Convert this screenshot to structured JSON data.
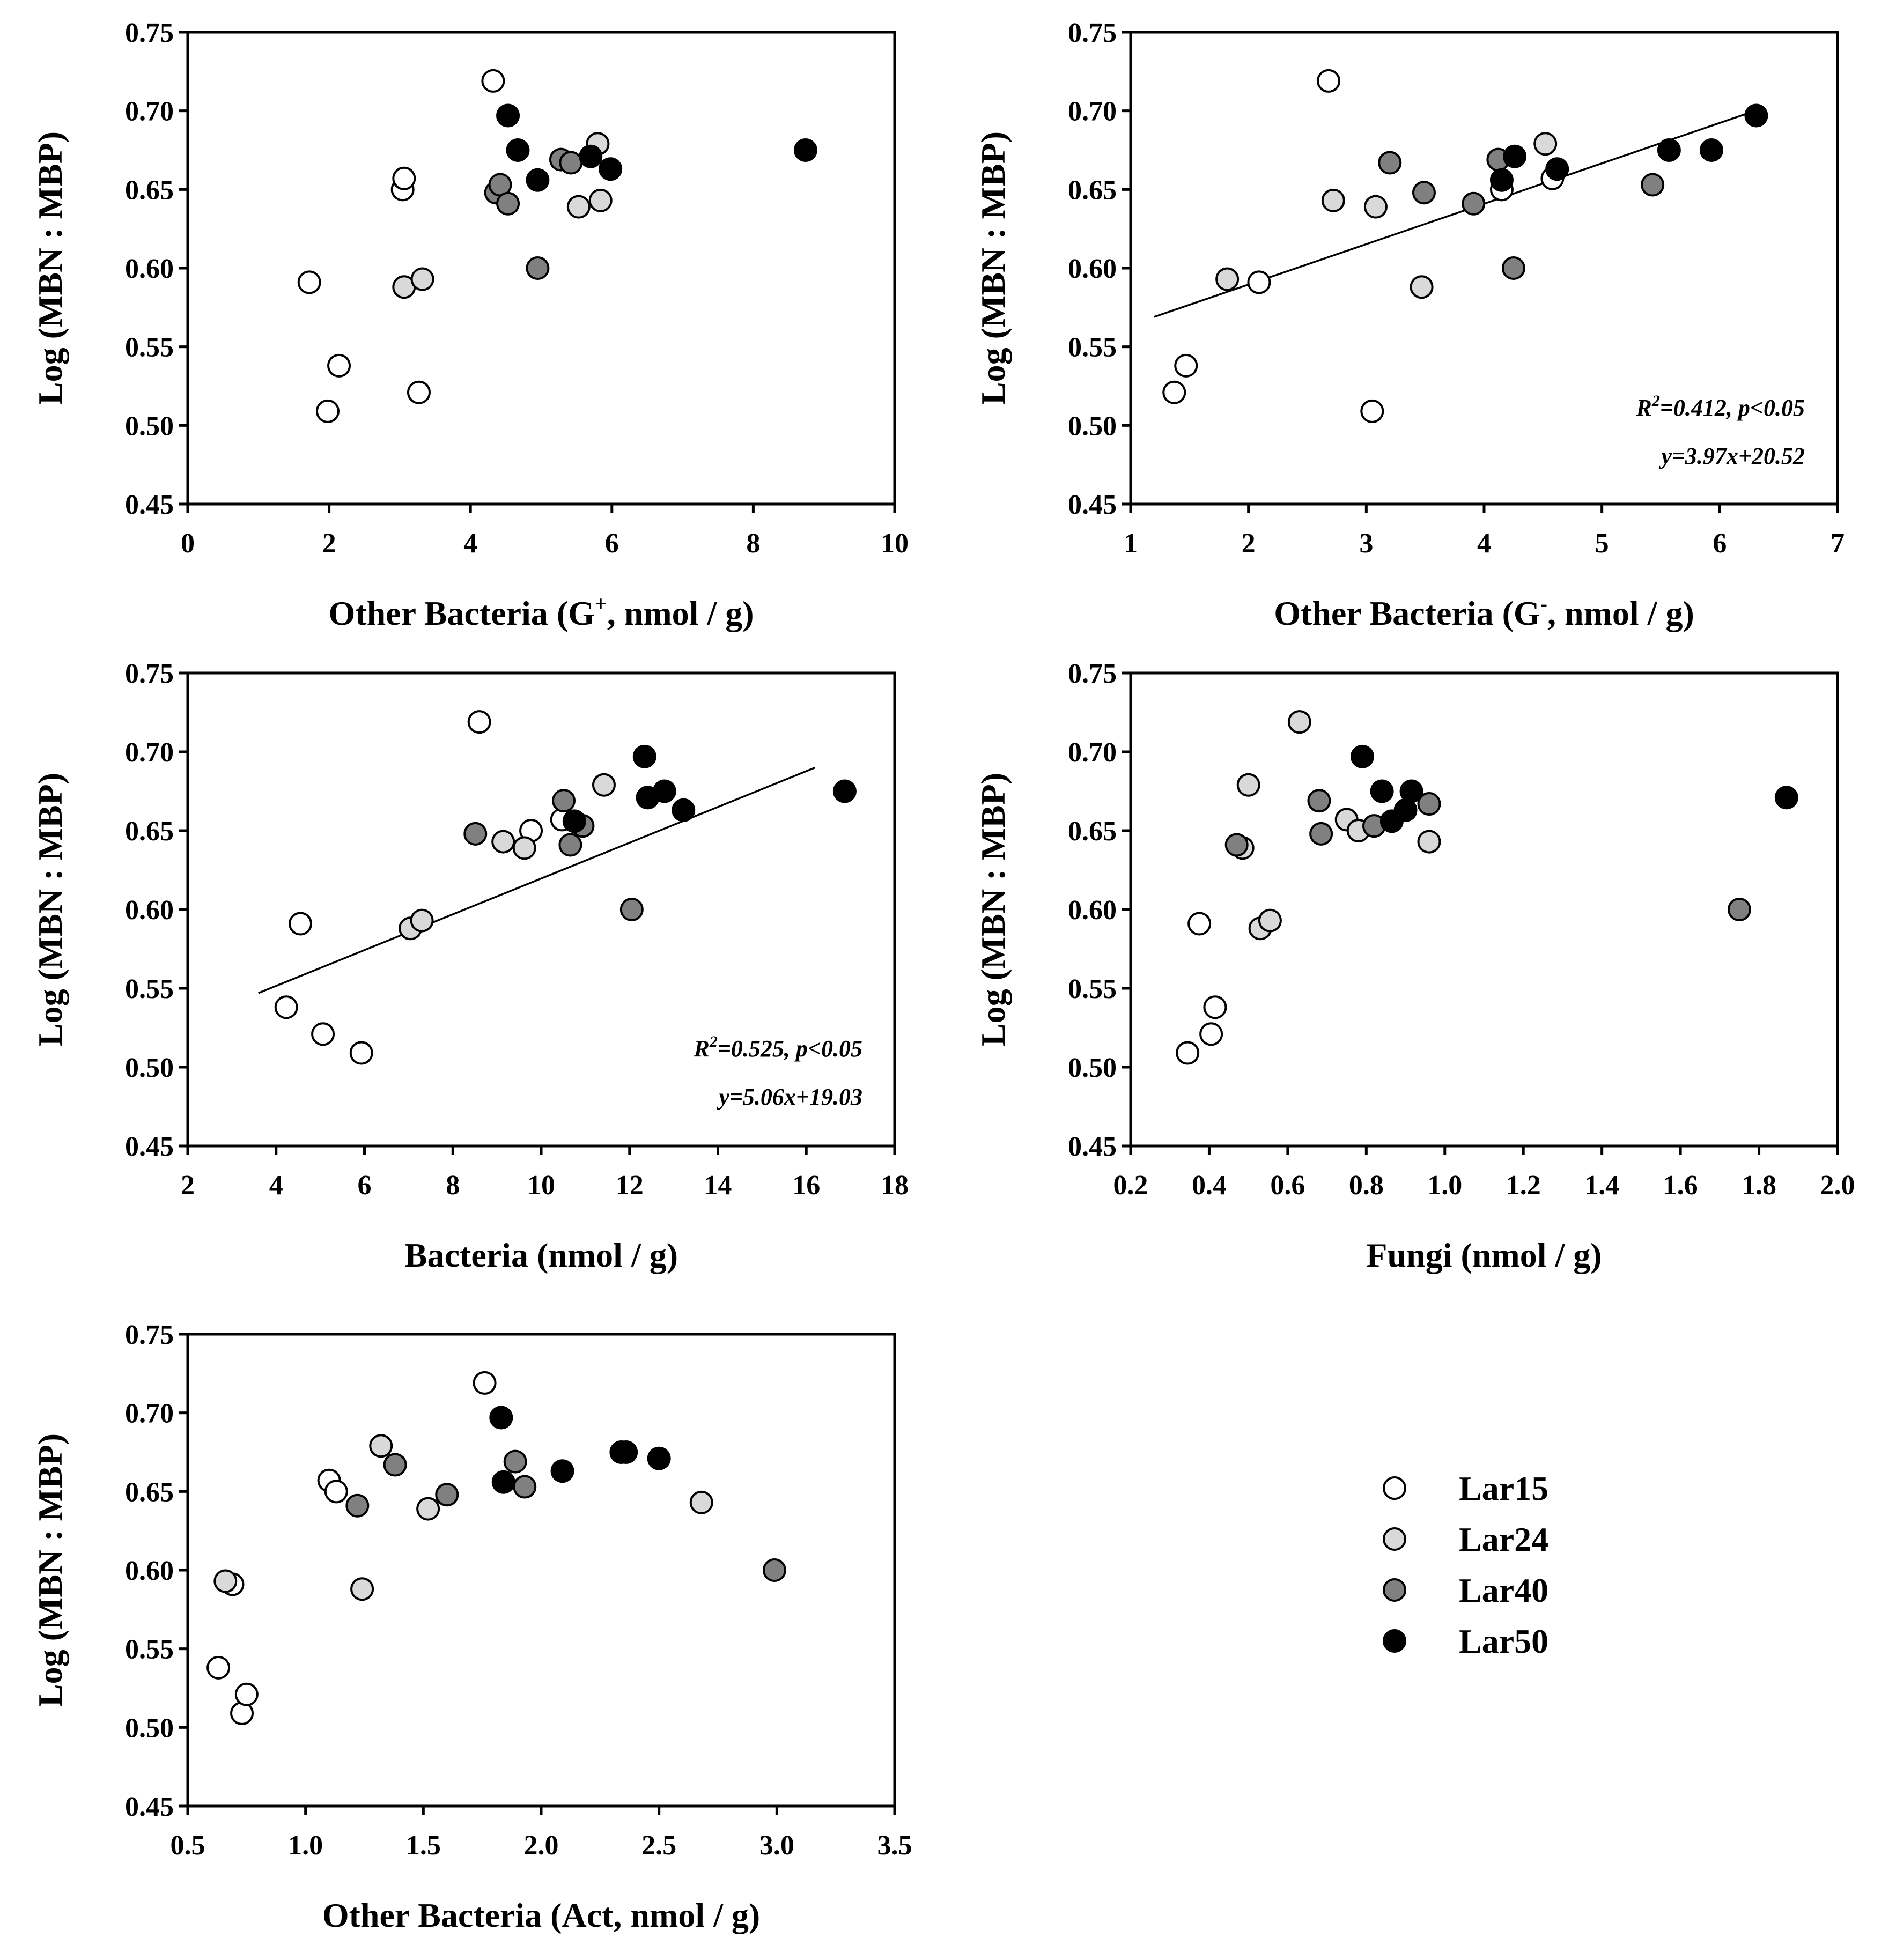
{
  "series_styles": {
    "Lar15": "#ffffff",
    "Lar24": "#d9d9d9",
    "Lar40": "#808080",
    "Lar50": "#000000"
  },
  "legend": {
    "title": "",
    "items": [
      "Lar15",
      "Lar24",
      "Lar40",
      "Lar50"
    ]
  },
  "chart_data": [
    {
      "id": "p1",
      "type": "scatter",
      "title": "",
      "xlabel": "Other Bacteria (G, nmol / g)",
      "xlabel_parts": {
        "before": "Other Bacteria (G",
        "sup": "+",
        "after": ", nmol / g)"
      },
      "ylabel": "Log (MBN : MBP)",
      "xlim": [
        0,
        10
      ],
      "ylim": [
        0.45,
        0.75
      ],
      "xticks": [
        "0",
        "2",
        "4",
        "6",
        "8",
        "10"
      ],
      "yticks": [
        "0.45",
        "0.50",
        "0.55",
        "0.60",
        "0.65",
        "0.70",
        "0.75"
      ],
      "series": [
        {
          "name": "Lar15",
          "x": [
            1.72,
            1.98,
            2.14,
            3.04,
            3.06,
            3.27,
            4.32
          ],
          "y": [
            0.591,
            0.509,
            0.538,
            0.65,
            0.657,
            0.521,
            0.719
          ]
        },
        {
          "name": "Lar24",
          "x": [
            3.06,
            3.32,
            5.53,
            5.8,
            5.84
          ],
          "y": [
            0.588,
            0.593,
            0.639,
            0.679,
            0.643
          ]
        },
        {
          "name": "Lar40",
          "x": [
            4.36,
            4.42,
            4.53,
            4.95,
            5.28,
            5.42
          ],
          "y": [
            0.648,
            0.653,
            0.641,
            0.6,
            0.669,
            0.667
          ]
        },
        {
          "name": "Lar50",
          "x": [
            4.53,
            4.67,
            4.95,
            5.7,
            5.98,
            8.74
          ],
          "y": [
            0.697,
            0.675,
            0.656,
            0.671,
            0.663,
            0.675
          ]
        }
      ],
      "fit": null,
      "annotations": []
    },
    {
      "id": "p2",
      "type": "scatter",
      "title": "",
      "xlabel": "Other Bacteria (G, nmol / g)",
      "xlabel_parts": {
        "before": "Other Bacteria (G",
        "sup": "-",
        "after": ", nmol / g)"
      },
      "ylabel": "Log (MBN : MBP)",
      "xlim": [
        1,
        7
      ],
      "ylim": [
        0.45,
        0.75
      ],
      "xticks": [
        "1",
        "2",
        "3",
        "4",
        "5",
        "6",
        "7"
      ],
      "yticks": [
        "0.45",
        "0.50",
        "0.55",
        "0.60",
        "0.65",
        "0.70",
        "0.75"
      ],
      "series": [
        {
          "name": "Lar15",
          "x": [
            1.37,
            1.47,
            2.09,
            3.05,
            4.15,
            4.58,
            2.68
          ],
          "y": [
            0.521,
            0.538,
            0.591,
            0.509,
            0.65,
            0.657,
            0.719
          ]
        },
        {
          "name": "Lar24",
          "x": [
            1.82,
            2.72,
            3.08,
            3.47,
            4.52
          ],
          "y": [
            0.593,
            0.643,
            0.639,
            0.588,
            0.679
          ]
        },
        {
          "name": "Lar40",
          "x": [
            3.2,
            3.49,
            3.91,
            4.12,
            4.25,
            5.43
          ],
          "y": [
            0.667,
            0.648,
            0.641,
            0.669,
            0.6,
            0.653
          ]
        },
        {
          "name": "Lar50",
          "x": [
            4.15,
            4.26,
            4.62,
            5.57,
            5.93,
            6.31
          ],
          "y": [
            0.656,
            0.671,
            0.663,
            0.675,
            0.675,
            0.697
          ]
        }
      ],
      "fit": {
        "x": [
          1.2,
          6.3
        ],
        "y": [
          0.569,
          0.7
        ]
      },
      "annotations": [
        "R=0.412, p<0.05",
        "y=3.97x+20.52"
      ],
      "annotation_parts": {
        "before": "R",
        "sup": "2",
        "after": "=0.412, p<0.05"
      }
    },
    {
      "id": "p3",
      "type": "scatter",
      "title": "",
      "xlabel": "Bacteria (nmol / g)",
      "ylabel": "Log (MBN : MBP)",
      "xlim": [
        2,
        18
      ],
      "ylim": [
        0.45,
        0.75
      ],
      "xticks": [
        "2",
        "4",
        "6",
        "8",
        "10",
        "12",
        "14",
        "16",
        "18"
      ],
      "yticks": [
        "0.45",
        "0.50",
        "0.55",
        "0.60",
        "0.65",
        "0.70",
        "0.75"
      ],
      "series": [
        {
          "name": "Lar15",
          "x": [
            4.23,
            4.55,
            5.06,
            5.93,
            8.6,
            9.77,
            10.47
          ],
          "y": [
            0.538,
            0.591,
            0.521,
            0.509,
            0.719,
            0.65,
            0.657
          ]
        },
        {
          "name": "Lar24",
          "x": [
            7.04,
            7.3,
            9.14,
            9.62,
            11.42
          ],
          "y": [
            0.588,
            0.593,
            0.643,
            0.639,
            0.679
          ]
        },
        {
          "name": "Lar40",
          "x": [
            8.51,
            10.51,
            10.66,
            10.94,
            12.05
          ],
          "y": [
            0.648,
            0.669,
            0.641,
            0.653,
            0.6
          ]
        },
        {
          "name": "Lar50",
          "x": [
            10.75,
            12.34,
            12.41,
            12.79,
            13.22,
            16.87
          ],
          "y": [
            0.656,
            0.697,
            0.671,
            0.675,
            0.663,
            0.675
          ]
        }
      ],
      "fit": {
        "x": [
          3.6,
          16.2
        ],
        "y": [
          0.547,
          0.69
        ]
      },
      "annotations": [
        "R=0.525, p<0.05",
        "y=5.06x+19.03"
      ],
      "annotation_parts": {
        "before": "R",
        "sup": "2",
        "after": "=0.525, p<0.05"
      }
    },
    {
      "id": "p4",
      "type": "scatter",
      "title": "",
      "xlabel": "Fungi (nmol / g)",
      "ylabel": "Log (MBN : MBP)",
      "xlim": [
        0.2,
        2.0
      ],
      "ylim": [
        0.45,
        0.75
      ],
      "xticks": [
        "0.2",
        "0.4",
        "0.6",
        "0.8",
        "1.0",
        "1.2",
        "1.4",
        "1.6",
        "1.8",
        "2.0"
      ],
      "yticks": [
        "0.45",
        "0.50",
        "0.55",
        "0.60",
        "0.65",
        "0.70",
        "0.75"
      ],
      "series": [
        {
          "name": "Lar15",
          "x": [
            0.345,
            0.375,
            0.405,
            0.415
          ],
          "y": [
            0.509,
            0.591,
            0.521,
            0.538
          ]
        },
        {
          "name": "Lar24",
          "x": [
            0.485,
            0.5,
            0.53,
            0.555,
            0.63,
            0.75,
            0.78,
            0.96
          ],
          "y": [
            0.639,
            0.679,
            0.588,
            0.593,
            0.719,
            0.657,
            0.65,
            0.643
          ]
        },
        {
          "name": "Lar40",
          "x": [
            0.47,
            0.68,
            0.685,
            0.82,
            0.96,
            1.75
          ],
          "y": [
            0.641,
            0.669,
            0.648,
            0.653,
            0.667,
            0.6
          ]
        },
        {
          "name": "Lar50",
          "x": [
            0.79,
            0.84,
            0.865,
            0.9,
            0.915,
            1.87
          ],
          "y": [
            0.697,
            0.675,
            0.656,
            0.663,
            0.675,
            0.671
          ]
        }
      ],
      "fit": null,
      "annotations": []
    },
    {
      "id": "p5",
      "type": "scatter",
      "title": "",
      "xlabel": "Other Bacteria (Act, nmol / g)",
      "ylabel": "Log (MBN : MBP)",
      "xlim": [
        0.5,
        3.5
      ],
      "ylim": [
        0.45,
        0.75
      ],
      "xticks": [
        "0.5",
        "1.0",
        "1.5",
        "2.0",
        "2.5",
        "3.0",
        "3.5"
      ],
      "yticks": [
        "0.45",
        "0.50",
        "0.55",
        "0.60",
        "0.65",
        "0.70",
        "0.75"
      ],
      "series": [
        {
          "name": "Lar15",
          "x": [
            0.63,
            0.69,
            0.73,
            0.75,
            1.1,
            1.13,
            1.76
          ],
          "y": [
            0.538,
            0.591,
            0.509,
            0.521,
            0.657,
            0.65,
            0.719
          ]
        },
        {
          "name": "Lar24",
          "x": [
            0.66,
            1.24,
            1.32,
            1.52,
            2.68
          ],
          "y": [
            0.593,
            0.588,
            0.679,
            0.639,
            0.643
          ]
        },
        {
          "name": "Lar40",
          "x": [
            1.22,
            1.38,
            1.6,
            1.89,
            1.93,
            2.99
          ],
          "y": [
            0.641,
            0.667,
            0.648,
            0.669,
            0.653,
            0.6
          ]
        },
        {
          "name": "Lar50",
          "x": [
            1.83,
            1.84,
            2.09,
            2.34,
            2.36,
            2.5
          ],
          "y": [
            0.697,
            0.656,
            0.663,
            0.675,
            0.675,
            0.671
          ]
        }
      ],
      "fit": null,
      "annotations": []
    }
  ]
}
